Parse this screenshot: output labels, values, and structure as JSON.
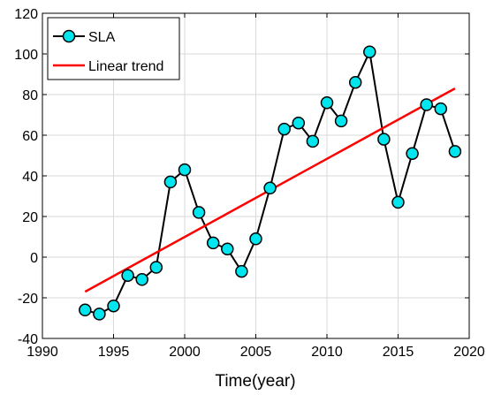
{
  "chart_data": {
    "type": "line",
    "xlabel": "Time(year)",
    "ylabel": "",
    "xlim": [
      1990,
      2020
    ],
    "ylim": [
      -40,
      120
    ],
    "xticks": [
      1990,
      1995,
      2000,
      2005,
      2010,
      2015,
      2020
    ],
    "yticks": [
      -40,
      -20,
      0,
      20,
      40,
      60,
      80,
      100,
      120
    ],
    "grid": "on",
    "legend_position": "top-left",
    "series": [
      {
        "name": "SLA",
        "color": "#000000",
        "marker_color": "#00e5ee",
        "x": [
          1993,
          1994,
          1995,
          1996,
          1997,
          1998,
          1999,
          2000,
          2001,
          2002,
          2003,
          2004,
          2005,
          2006,
          2007,
          2008,
          2009,
          2010,
          2011,
          2012,
          2013,
          2014,
          2015,
          2016,
          2017,
          2018,
          2019
        ],
        "values": [
          -26,
          -28,
          -24,
          -9,
          -11,
          -5,
          37,
          43,
          22,
          7,
          4,
          -7,
          9,
          34,
          63,
          66,
          57,
          76,
          67,
          86,
          101,
          58,
          27,
          51,
          75,
          73,
          52
        ]
      },
      {
        "name": "Linear trend",
        "color": "#ff0000",
        "x": [
          1993,
          2019
        ],
        "values": [
          -17,
          83
        ]
      }
    ]
  }
}
